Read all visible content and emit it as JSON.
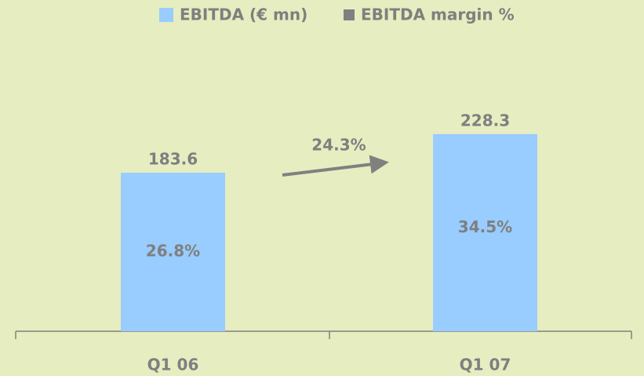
{
  "chart_data": {
    "type": "bar",
    "categories": [
      "Q1 06",
      "Q1 07"
    ],
    "series": [
      {
        "name": "EBITDA (€ mn)",
        "color": "#99ccff",
        "values": [
          183.6,
          228.3
        ]
      },
      {
        "name": "EBITDA margin %",
        "color": "#808080",
        "values": [
          26.8,
          34.5
        ],
        "value_labels": [
          "26.8%",
          "34.5%"
        ]
      }
    ],
    "ylim": [
      0,
      250
    ],
    "annotation": "24.3%",
    "legend": "top"
  }
}
